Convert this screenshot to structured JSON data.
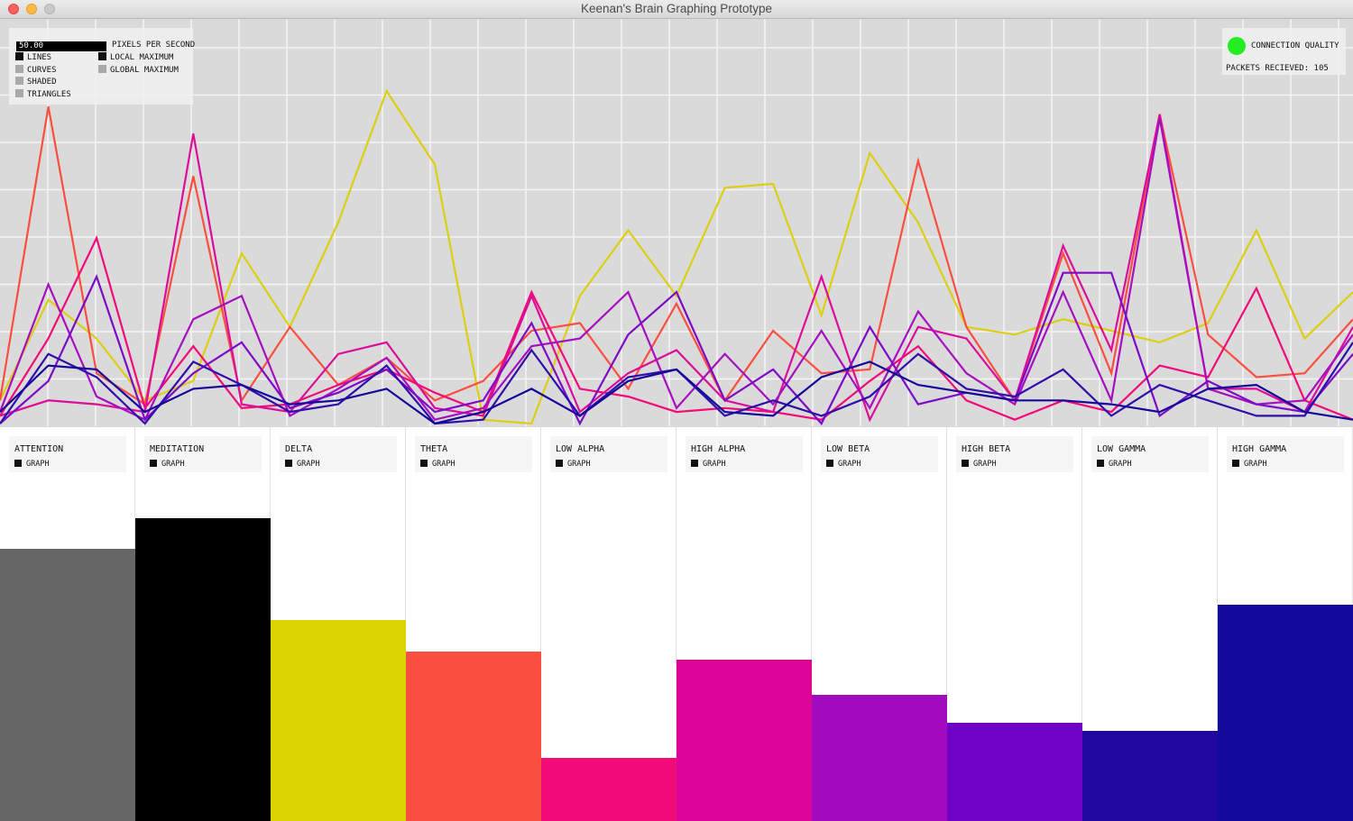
{
  "window": {
    "title": "Keenan's Brain Graphing Prototype"
  },
  "controls": {
    "pixels_per_second_value": "50.00",
    "pixels_per_second_label": "PIXELS PER SECOND",
    "render_options": [
      {
        "label": "LINES",
        "checked": true
      },
      {
        "label": "CURVES",
        "checked": false
      },
      {
        "label": "SHADED",
        "checked": false
      },
      {
        "label": "TRIANGLES",
        "checked": false
      }
    ],
    "marker_options": [
      {
        "label": "LOCAL MAXIMUM",
        "checked": true
      },
      {
        "label": "GLOBAL MAXIMUM",
        "checked": false
      }
    ]
  },
  "status": {
    "connection_label": "CONNECTION QUALITY",
    "connection_color": "#22ee22",
    "packets_text": "PACKETS RECIEVED: 105"
  },
  "graph": {
    "background": "#dadada",
    "grid_color": "#f4f4f4",
    "series": [
      {
        "color": "#dccf10",
        "values": [
          0.06,
          0.32,
          0.22,
          0.06,
          0.11,
          0.44,
          0.25,
          0.52,
          0.86,
          0.67,
          0.01,
          0.0,
          0.33,
          0.5,
          0.33,
          0.61,
          0.62,
          0.28,
          0.7,
          0.52,
          0.25,
          0.23,
          0.27,
          0.24,
          0.21,
          0.26,
          0.5,
          0.22,
          0.34
        ]
      },
      {
        "color": "#fa4f40",
        "values": [
          0.06,
          0.82,
          0.13,
          0.05,
          0.64,
          0.06,
          0.25,
          0.1,
          0.17,
          0.06,
          0.11,
          0.24,
          0.26,
          0.09,
          0.31,
          0.06,
          0.24,
          0.13,
          0.14,
          0.68,
          0.25,
          0.06,
          0.44,
          0.13,
          0.8,
          0.23,
          0.12,
          0.13,
          0.27
        ]
      },
      {
        "color": "#f20a78",
        "values": [
          0.02,
          0.22,
          0.48,
          0.04,
          0.2,
          0.04,
          0.05,
          0.1,
          0.14,
          0.08,
          0.03,
          0.34,
          0.09,
          0.07,
          0.03,
          0.04,
          0.03,
          0.01,
          0.11,
          0.2,
          0.06,
          0.01,
          0.06,
          0.03,
          0.15,
          0.12,
          0.35,
          0.06,
          0.01
        ]
      },
      {
        "color": "#db0e9a",
        "values": [
          0.02,
          0.06,
          0.05,
          0.03,
          0.75,
          0.05,
          0.03,
          0.18,
          0.21,
          0.04,
          0.02,
          0.33,
          0.03,
          0.13,
          0.19,
          0.06,
          0.03,
          0.38,
          0.01,
          0.25,
          0.22,
          0.06,
          0.46,
          0.19,
          0.8,
          0.09,
          0.09,
          0.03,
          0.25
        ]
      },
      {
        "color": "#a50fbf",
        "values": [
          0.03,
          0.36,
          0.07,
          0.01,
          0.27,
          0.33,
          0.02,
          0.09,
          0.17,
          0.01,
          0.04,
          0.2,
          0.22,
          0.34,
          0.04,
          0.18,
          0.05,
          0.24,
          0.04,
          0.29,
          0.13,
          0.05,
          0.34,
          0.06,
          0.79,
          0.09,
          0.05,
          0.06,
          0.23
        ]
      },
      {
        "color": "#7d0bc6",
        "values": [
          0.0,
          0.11,
          0.38,
          0.01,
          0.13,
          0.21,
          0.04,
          0.08,
          0.14,
          0.03,
          0.06,
          0.26,
          0.0,
          0.23,
          0.34,
          0.06,
          0.14,
          0.0,
          0.25,
          0.05,
          0.08,
          0.06,
          0.39,
          0.39,
          0.02,
          0.11,
          0.05,
          0.03,
          0.18
        ]
      },
      {
        "color": "#2e0fa8",
        "values": [
          0.0,
          0.18,
          0.12,
          0.0,
          0.16,
          0.1,
          0.03,
          0.05,
          0.15,
          0.0,
          0.01,
          0.19,
          0.02,
          0.12,
          0.14,
          0.02,
          0.06,
          0.02,
          0.07,
          0.18,
          0.09,
          0.07,
          0.14,
          0.02,
          0.1,
          0.06,
          0.02,
          0.02,
          0.21
        ]
      },
      {
        "color": "#14079a",
        "values": [
          0.03,
          0.15,
          0.14,
          0.03,
          0.09,
          0.1,
          0.05,
          0.06,
          0.09,
          0.0,
          0.03,
          0.09,
          0.02,
          0.11,
          0.14,
          0.03,
          0.02,
          0.12,
          0.16,
          0.1,
          0.08,
          0.06,
          0.06,
          0.05,
          0.03,
          0.09,
          0.1,
          0.03,
          0.01
        ]
      }
    ]
  },
  "channels": [
    {
      "name": "ATTENTION",
      "graph_label": "GRAPH",
      "color": "#666666",
      "level": 0.69
    },
    {
      "name": "MEDITATION",
      "graph_label": "GRAPH",
      "color": "#000000",
      "level": 0.77
    },
    {
      "name": "DELTA",
      "graph_label": "GRAPH",
      "color": "#dcd400",
      "level": 0.51
    },
    {
      "name": "THETA",
      "graph_label": "GRAPH",
      "color": "#fa4f40",
      "level": 0.43
    },
    {
      "name": "LOW ALPHA",
      "graph_label": "GRAPH",
      "color": "#f20a78",
      "level": 0.16
    },
    {
      "name": "HIGH ALPHA",
      "graph_label": "GRAPH",
      "color": "#dc0598",
      "level": 0.41
    },
    {
      "name": "LOW BETA",
      "graph_label": "GRAPH",
      "color": "#a10bbd",
      "level": 0.32
    },
    {
      "name": "HIGH BETA",
      "graph_label": "GRAPH",
      "color": "#7003c6",
      "level": 0.25
    },
    {
      "name": "LOW GAMMA",
      "graph_label": "GRAPH",
      "color": "#23089e",
      "level": 0.23
    },
    {
      "name": "HIGH GAMMA",
      "graph_label": "GRAPH",
      "color": "#130a9a",
      "level": 0.55
    }
  ]
}
